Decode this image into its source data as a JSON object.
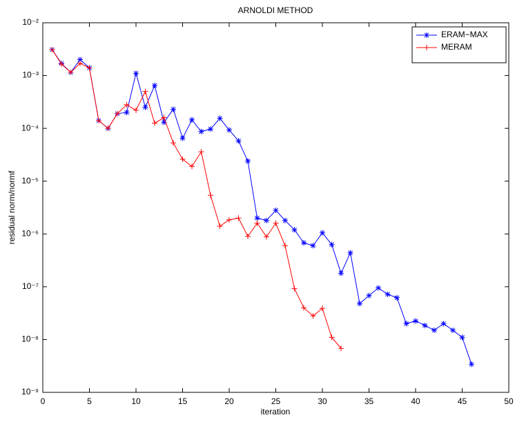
{
  "chart_data": {
    "type": "line",
    "title": "ARNOLDI METHOD",
    "x_label": "iteration",
    "y_label": "residual norm/normf",
    "log_y": true,
    "legend": "upper right",
    "xlim": [
      0,
      50
    ],
    "xticks": [
      0,
      5,
      10,
      15,
      20,
      25,
      30,
      35,
      40,
      45,
      50
    ],
    "ylim": [
      1e-09,
      0.01
    ],
    "yticks": [
      {
        "value": 1e-09,
        "label": "10⁻⁹"
      },
      {
        "value": 1e-08,
        "label": "10⁻⁸"
      },
      {
        "value": 1e-07,
        "label": "10⁻⁷"
      },
      {
        "value": 1e-06,
        "label": "10⁻⁶"
      },
      {
        "value": 1e-05,
        "label": "10⁻⁵"
      },
      {
        "value": 0.0001,
        "label": "10⁻⁴"
      },
      {
        "value": 0.001,
        "label": "10⁻³"
      },
      {
        "value": 0.01,
        "label": "10⁻²"
      }
    ],
    "series": [
      {
        "name": "ERAM−MAX",
        "color": "#0000ff",
        "marker": "asterisk",
        "x": [
          1,
          2,
          3,
          4,
          5,
          6,
          7,
          8,
          9,
          10,
          11,
          12,
          13,
          14,
          15,
          16,
          17,
          18,
          19,
          20,
          21,
          22,
          23,
          24,
          25,
          26,
          27,
          28,
          29,
          30,
          31,
          32,
          33,
          34,
          35,
          36,
          37,
          38,
          39,
          40,
          41,
          42,
          43,
          44,
          45,
          46
        ],
        "values": [
          0.0031,
          0.0017,
          0.00115,
          0.002,
          0.0014,
          0.00014,
          0.0001,
          0.00019,
          0.0002,
          0.0011,
          0.00025,
          0.00065,
          0.00013,
          0.00023,
          6.5e-05,
          0.000145,
          8.7e-05,
          9.7e-05,
          0.000155,
          9.3e-05,
          5.8e-05,
          2.4e-05,
          2e-06,
          1.8e-06,
          2.8e-06,
          1.8e-06,
          1.2e-06,
          6.8e-07,
          6e-07,
          1.05e-06,
          6.3e-07,
          1.8e-07,
          4.4e-07,
          4.8e-08,
          6.8e-08,
          9.5e-08,
          7.2e-08,
          6.2e-08,
          2e-08,
          2.25e-08,
          1.85e-08,
          1.5e-08,
          2e-08,
          1.5e-08,
          1.1e-08,
          3.4e-09
        ]
      },
      {
        "name": "MERAM",
        "color": "#ff0000",
        "marker": "plus",
        "x": [
          1,
          2,
          3,
          4,
          5,
          6,
          7,
          8,
          9,
          10,
          11,
          12,
          13,
          14,
          15,
          16,
          17,
          18,
          19,
          20,
          21,
          22,
          23,
          24,
          25,
          26,
          27,
          28,
          29,
          30,
          31,
          32
        ],
        "values": [
          0.0031,
          0.00165,
          0.00115,
          0.0017,
          0.0014,
          0.00014,
          0.0001,
          0.00019,
          0.00028,
          0.00022,
          0.0005,
          0.000125,
          0.00016,
          5.3e-05,
          2.6e-05,
          1.9e-05,
          3.6e-05,
          5.4e-06,
          1.4e-06,
          1.85e-06,
          2e-06,
          9e-07,
          1.6e-06,
          8.8e-07,
          1.6e-06,
          6e-07,
          9.2e-08,
          4e-08,
          2.8e-08,
          3.9e-08,
          1.1e-08,
          6.8e-09
        ]
      }
    ]
  }
}
